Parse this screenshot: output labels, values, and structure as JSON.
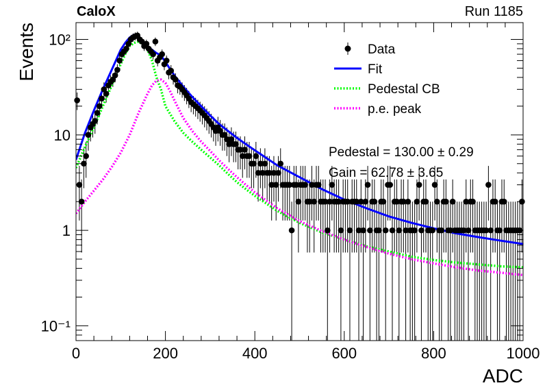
{
  "header": {
    "experiment": "CaloX",
    "run": "Run 1185"
  },
  "chart_data": {
    "type": "scatter",
    "title": "",
    "xlabel": "ADC",
    "ylabel": "Events",
    "xlim": [
      0,
      1000
    ],
    "ylim": [
      0.07,
      150
    ],
    "yscale": "log",
    "grid": false,
    "legend_position": "top-right",
    "x_ticks": [
      0,
      200,
      400,
      600,
      800,
      1000
    ],
    "x_tick_labels": [
      "0",
      "200",
      "400",
      "600",
      "800",
      "1000"
    ],
    "y_ticks": [
      0.1,
      1,
      10,
      100
    ],
    "y_tick_labels": [
      "10⁻¹",
      "1",
      "10",
      "10²"
    ],
    "legend": [
      {
        "label": "Data",
        "style": "marker",
        "color": "#000000"
      },
      {
        "label": "Fit",
        "style": "solid",
        "color": "#0000ff"
      },
      {
        "label": "Pedestal CB",
        "style": "dotted",
        "color": "#00ff00"
      },
      {
        "label": "p.e. peak",
        "style": "dotted",
        "color": "#ff00ff"
      }
    ],
    "annotations": [
      "Pedestal = 130.00 ± 0.29",
      "Gain = 62.78 ± 3.65"
    ],
    "series": [
      {
        "name": "Data",
        "kind": "points",
        "color": "#000000",
        "x": [
          0,
          5,
          10,
          15,
          20,
          25,
          30,
          35,
          40,
          45,
          50,
          55,
          60,
          65,
          70,
          75,
          80,
          85,
          90,
          95,
          100,
          105,
          110,
          115,
          120,
          125,
          130,
          135,
          140,
          145,
          150,
          155,
          160,
          165,
          170,
          175,
          180,
          185,
          190,
          195,
          200,
          205,
          210,
          215,
          220,
          225,
          230,
          235,
          240,
          245,
          250,
          255,
          260,
          265,
          270,
          275,
          280,
          285,
          290,
          295,
          300,
          305,
          310,
          315,
          320,
          325,
          330,
          335,
          340,
          345,
          350,
          355,
          360,
          365,
          370,
          375,
          380,
          385,
          390,
          395,
          400,
          405,
          410,
          415,
          420,
          425,
          430,
          435,
          440,
          445,
          450,
          455,
          460,
          465,
          470,
          475,
          480,
          485,
          490,
          495,
          500,
          505,
          510,
          515,
          520,
          525,
          530,
          535,
          540,
          545,
          550,
          555,
          560,
          565,
          570,
          575,
          580,
          585,
          590,
          595,
          600,
          605,
          610,
          615,
          620,
          625,
          630,
          635,
          640,
          645,
          650,
          655,
          660,
          665,
          670,
          675,
          680,
          685,
          690,
          695,
          700,
          705,
          710,
          715,
          720,
          725,
          730,
          735,
          740,
          745,
          750,
          755,
          760,
          765,
          770,
          775,
          780,
          785,
          790,
          795,
          800,
          805,
          810,
          815,
          820,
          825,
          830,
          835,
          840,
          845,
          850,
          855,
          860,
          865,
          870,
          875,
          880,
          885,
          890,
          895,
          900,
          905,
          910,
          915,
          920,
          925,
          930,
          935,
          940,
          945,
          950,
          955,
          960,
          965,
          970,
          975,
          980,
          985,
          990,
          995
        ],
        "y": [
          23,
          3,
          2,
          5,
          6,
          10,
          12,
          13,
          14,
          17,
          20,
          24,
          30,
          27,
          33,
          36,
          38,
          42,
          48,
          60,
          70,
          75,
          80,
          90,
          100,
          105,
          108,
          110,
          100,
          95,
          85,
          90,
          80,
          75,
          70,
          95,
          60,
          65,
          70,
          55,
          60,
          45,
          47,
          40,
          38,
          33,
          32,
          30,
          28,
          26,
          24,
          22,
          21,
          20,
          19,
          18,
          17,
          16,
          15,
          14,
          13,
          12,
          11,
          12,
          11,
          10,
          10,
          9,
          8,
          9,
          8,
          8,
          7,
          7,
          6,
          7,
          6,
          6,
          5,
          5,
          6,
          4,
          5,
          4,
          5,
          4,
          4,
          3,
          4,
          3,
          4,
          5,
          3,
          3,
          3,
          3,
          1,
          3,
          3,
          2,
          3,
          3,
          3,
          2,
          2,
          3,
          2,
          3,
          3,
          2,
          2,
          2,
          1,
          2,
          3,
          2,
          2,
          2,
          1,
          2,
          2,
          2,
          1,
          2,
          2,
          2,
          1,
          2,
          1,
          2,
          3,
          1,
          2,
          2,
          1,
          1,
          2,
          2,
          1,
          3,
          3,
          1,
          2,
          2,
          1,
          2,
          2,
          1,
          2,
          1,
          1,
          1,
          2,
          3,
          1,
          2,
          2,
          1,
          1,
          1,
          3,
          2,
          1,
          1,
          2,
          2,
          1,
          1,
          2,
          1,
          1,
          1,
          1,
          1,
          2,
          1,
          2,
          2,
          1,
          1,
          1,
          1,
          1,
          1,
          3,
          1,
          2,
          2,
          1,
          1,
          2,
          2,
          1,
          1,
          1,
          1,
          1,
          1,
          1,
          2
        ]
      },
      {
        "name": "Fit",
        "kind": "line",
        "color": "#0000ff",
        "x": [
          0,
          20,
          40,
          60,
          80,
          100,
          110,
          120,
          130,
          140,
          150,
          160,
          170,
          180,
          190,
          200,
          220,
          240,
          260,
          280,
          300,
          320,
          340,
          360,
          380,
          400,
          450,
          500,
          550,
          600,
          650,
          700,
          750,
          800,
          850,
          900,
          950,
          1000
        ],
        "y": [
          5.5,
          10.5,
          18,
          30,
          48,
          78,
          92,
          105,
          112,
          108,
          96,
          85,
          78,
          72,
          68,
          58,
          42,
          32,
          25,
          20,
          16,
          13,
          11,
          9.3,
          8,
          6.9,
          4.8,
          3.6,
          2.7,
          2.1,
          1.7,
          1.4,
          1.2,
          1.05,
          0.93,
          0.85,
          0.78,
          0.72
        ]
      },
      {
        "name": "Pedestal CB",
        "kind": "dotted",
        "color": "#00ff00",
        "x": [
          0,
          20,
          40,
          60,
          80,
          100,
          110,
          120,
          130,
          140,
          150,
          160,
          170,
          180,
          190,
          200,
          220,
          240,
          260,
          280,
          300,
          320,
          340,
          360,
          380,
          400,
          450,
          500,
          550,
          600,
          650,
          700,
          750,
          800,
          850,
          900,
          950,
          1000
        ],
        "y": [
          4.5,
          7.5,
          12,
          20,
          33,
          55,
          70,
          85,
          92,
          95,
          88,
          78,
          60,
          40,
          30,
          20,
          14,
          10.5,
          8.5,
          7,
          5.8,
          4.8,
          3.9,
          3.2,
          2.7,
          2.3,
          1.6,
          1.2,
          0.95,
          0.8,
          0.68,
          0.6,
          0.53,
          0.49,
          0.46,
          0.44,
          0.42,
          0.41
        ]
      },
      {
        "name": "p.e. peak",
        "kind": "dotted",
        "color": "#ff00ff",
        "x": [
          0,
          20,
          40,
          60,
          80,
          100,
          120,
          140,
          160,
          170,
          180,
          190,
          200,
          210,
          220,
          240,
          260,
          280,
          300,
          320,
          340,
          360,
          380,
          400,
          450,
          500,
          550,
          600,
          650,
          700,
          750,
          800,
          850,
          900,
          950,
          1000
        ],
        "y": [
          1.5,
          2.0,
          2.6,
          3.4,
          4.6,
          6.5,
          10,
          17,
          27,
          33,
          37,
          38,
          35,
          29,
          23,
          15,
          11,
          8.5,
          6.8,
          5.4,
          4.4,
          3.6,
          3.0,
          2.5,
          1.7,
          1.25,
          0.98,
          0.8,
          0.67,
          0.57,
          0.5,
          0.45,
          0.41,
          0.38,
          0.36,
          0.34
        ]
      }
    ]
  }
}
